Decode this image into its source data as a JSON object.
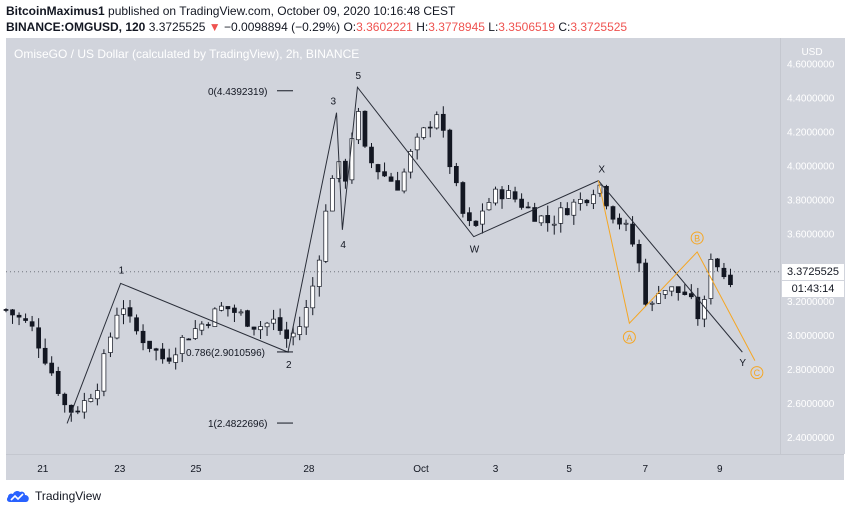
{
  "header": {
    "author": "BitcoinMaximus1",
    "published_text": "published on TradingView.com, October 09, 2020 10:16:48 CEST",
    "symbol": "BINANCE:OMGUSD, 120",
    "last": "3.3725525",
    "change_arrow": "▼",
    "change": "−0.0098894 (−0.29%)",
    "o_label": "O:",
    "o_value": "3.3602221",
    "h_label": "H:",
    "h_value": "3.3778945",
    "l_label": "L:",
    "l_value": "3.3506519",
    "c_label": "C:",
    "c_value": "3.3725525"
  },
  "chart_title": "OmiseGO / US Dollar (calculated by TradingView), 2h, BINANCE",
  "footer": {
    "brand": "TradingView"
  },
  "colors": {
    "background": "#d1d4dc",
    "up": "#ffffff",
    "down": "#131722",
    "wave_line": "#2a2e39",
    "orange": "#f5a623",
    "text_dark": "#131722",
    "negative": "#ef5350"
  },
  "chart_data": {
    "type": "candlestick",
    "title": "OmiseGO / US Dollar (calculated by TradingView), 2h, BINANCE",
    "yaxis_unit": "USD",
    "ylim": [
      2.3,
      4.75
    ],
    "yticks": [
      "4.6000000",
      "4.4000000",
      "4.2000000",
      "4.0000000",
      "3.8000000",
      "3.6000000",
      "3.4000000",
      "3.2000000",
      "3.0000000",
      "2.8000000",
      "2.6000000",
      "2.4000000"
    ],
    "xlim": [
      0,
      92.5
    ],
    "xticks": [
      {
        "label": "21",
        "x": 4.4
      },
      {
        "label": "23",
        "x": 13.6
      },
      {
        "label": "25",
        "x": 22.7
      },
      {
        "label": "28",
        "x": 36.2
      },
      {
        "label": "Oct",
        "x": 49.6
      },
      {
        "label": "3",
        "x": 58.5
      },
      {
        "label": "5",
        "x": 67.3
      },
      {
        "label": "7",
        "x": 76.4
      },
      {
        "label": "9",
        "x": 85.3
      }
    ],
    "anchors": [
      [
        0,
        3.15
      ],
      [
        3,
        3.05
      ],
      [
        5.5,
        2.78
      ],
      [
        7.3,
        2.55
      ],
      [
        9,
        2.58
      ],
      [
        11,
        2.72
      ],
      [
        13.7,
        3.22
      ],
      [
        15,
        3.05
      ],
      [
        17,
        2.95
      ],
      [
        19,
        2.85
      ],
      [
        21,
        2.97
      ],
      [
        23,
        3.05
      ],
      [
        26,
        3.17
      ],
      [
        28,
        3.12
      ],
      [
        30,
        3.05
      ],
      [
        32,
        3.08
      ],
      [
        33.7,
        2.97
      ],
      [
        35.5,
        3.08
      ],
      [
        37,
        3.35
      ],
      [
        39.5,
        4.1
      ],
      [
        40.2,
        3.8
      ],
      [
        41,
        4.1
      ],
      [
        42,
        4.32
      ],
      [
        43,
        4.05
      ],
      [
        45,
        3.95
      ],
      [
        47,
        3.88
      ],
      [
        48.5,
        4.08
      ],
      [
        50,
        4.2
      ],
      [
        51.5,
        4.32
      ],
      [
        53,
        4.02
      ],
      [
        54.5,
        3.72
      ],
      [
        55.9,
        3.6
      ],
      [
        57,
        3.75
      ],
      [
        59,
        3.85
      ],
      [
        61,
        3.8
      ],
      [
        63,
        3.72
      ],
      [
        65,
        3.66
      ],
      [
        67,
        3.75
      ],
      [
        69,
        3.8
      ],
      [
        70.8,
        3.9
      ],
      [
        72.5,
        3.72
      ],
      [
        74.5,
        3.6
      ],
      [
        76,
        3.36
      ],
      [
        76.8,
        3.1
      ],
      [
        78,
        3.28
      ],
      [
        80,
        3.26
      ],
      [
        81.5,
        3.24
      ],
      [
        82.5,
        3.1
      ],
      [
        83.5,
        3.18
      ],
      [
        84.3,
        3.5
      ],
      [
        85.5,
        3.36
      ],
      [
        86.7,
        3.34
      ],
      [
        87.3,
        3.37
      ]
    ],
    "last_price": "3.3725525",
    "countdown": "01:43:14",
    "annotations": {
      "wave_points": [
        {
          "label": "1",
          "x": 13.7,
          "y": 3.305
        },
        {
          "label": "2",
          "x": 33.7,
          "y": 2.9
        },
        {
          "label": "3",
          "x": 39.5,
          "y": 4.31
        },
        {
          "label": "4",
          "x": 40.2,
          "y": 3.62
        },
        {
          "label": "5",
          "x": 42,
          "y": 4.46
        },
        {
          "label": "W",
          "x": 55.9,
          "y": 3.58
        },
        {
          "label": "X",
          "x": 70.8,
          "y": 3.91
        },
        {
          "label": "Y",
          "x": 88,
          "y": 2.9
        }
      ],
      "orange_points": [
        {
          "label": "A",
          "x": 74.5,
          "y": 3.07
        },
        {
          "label": "B",
          "x": 82.6,
          "y": 3.49
        },
        {
          "label": "C",
          "x": 89.5,
          "y": 2.85
        }
      ],
      "fib_levels": [
        {
          "label": "0(4.4392319)",
          "y": 4.4392319
        },
        {
          "label": "0.786(2.9010596)",
          "y": 2.9010596
        },
        {
          "label": "1(2.4822696)",
          "y": 2.4822696
        }
      ],
      "start_marker": {
        "x": 7.3,
        "y": 2.48
      }
    }
  }
}
